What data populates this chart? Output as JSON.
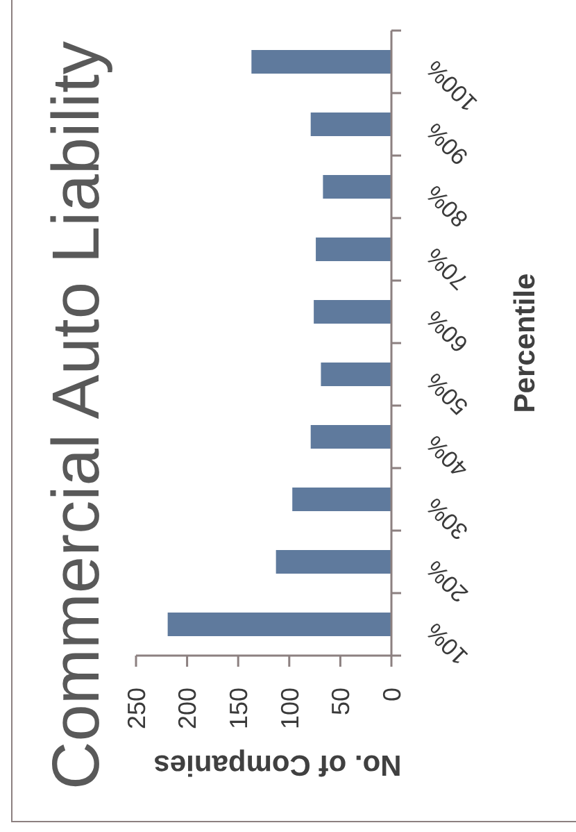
{
  "chart_data": {
    "type": "bar",
    "title": "Commercial Auto Liability",
    "xlabel": "No. of Companies",
    "ylabel": "Percentile",
    "orientation": "horizontal",
    "categories": [
      "100%",
      "90%",
      "80%",
      "70%",
      "60%",
      "50%",
      "40%",
      "30%",
      "20%",
      "10%"
    ],
    "values": [
      137,
      79,
      67,
      74,
      76,
      69,
      79,
      97,
      113,
      219
    ],
    "color": "#5f7a9d",
    "xlim": [
      250,
      0
    ],
    "xticks": [
      250,
      200,
      150,
      100,
      50,
      0
    ]
  }
}
